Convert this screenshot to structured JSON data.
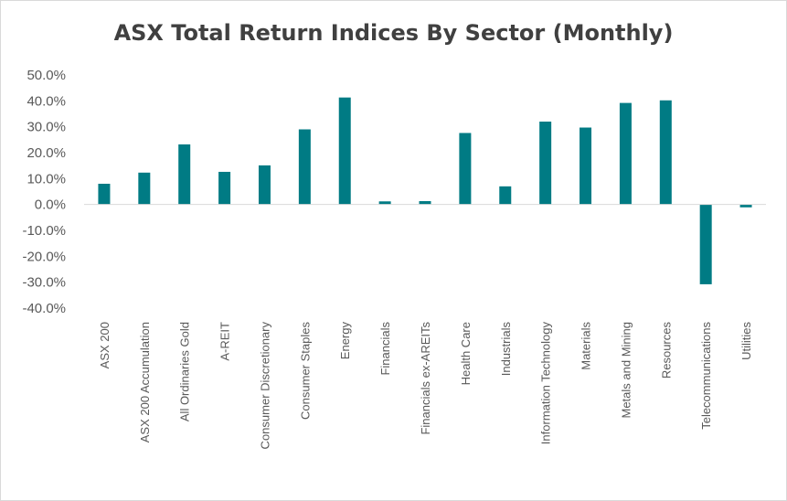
{
  "chart_data": {
    "type": "bar",
    "title": "ASX Total Return Indices By Sector (Monthly)",
    "xlabel": "",
    "ylabel": "",
    "ylim": [
      -40,
      50
    ],
    "yticks": [
      50,
      40,
      30,
      20,
      10,
      0,
      -10,
      -20,
      -30,
      -40
    ],
    "ytick_labels": [
      "50.0%",
      "40.0%",
      "30.0%",
      "20.0%",
      "10.0%",
      "0.0%",
      "-10.0%",
      "-20.0%",
      "-30.0%",
      "-40.0%"
    ],
    "grid": false,
    "legend": "none",
    "bar_color": "#007b84",
    "categories": [
      "ASX 200",
      "ASX 200 Accumulation",
      "All Ordinaries Gold",
      "A-REIT",
      "Consumer Discretionary",
      "Consumer Staples",
      "Energy",
      "Financials",
      "Financials ex-AREITs",
      "Health Care",
      "Industrials",
      "Information Technology",
      "Materials",
      "Metals and Mining",
      "Resources",
      "Telecommunications",
      "Utilities"
    ],
    "values": [
      8.0,
      12.3,
      23.2,
      12.6,
      15.1,
      29.0,
      41.3,
      1.2,
      1.3,
      27.6,
      7.0,
      32.0,
      29.7,
      39.2,
      40.2,
      -30.8,
      -1.1
    ]
  }
}
